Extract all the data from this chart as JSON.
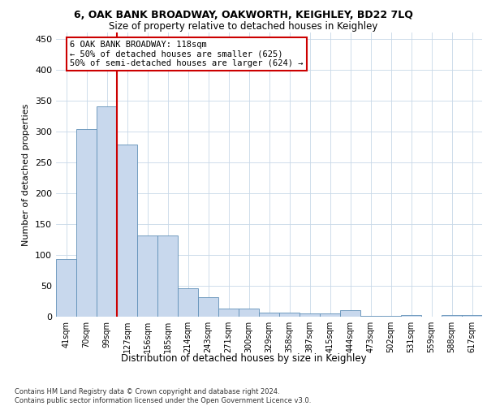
{
  "title": "6, OAK BANK BROADWAY, OAKWORTH, KEIGHLEY, BD22 7LQ",
  "subtitle": "Size of property relative to detached houses in Keighley",
  "xlabel": "Distribution of detached houses by size in Keighley",
  "ylabel": "Number of detached properties",
  "bar_labels": [
    "41sqm",
    "70sqm",
    "99sqm",
    "127sqm",
    "156sqm",
    "185sqm",
    "214sqm",
    "243sqm",
    "271sqm",
    "300sqm",
    "329sqm",
    "358sqm",
    "387sqm",
    "415sqm",
    "444sqm",
    "473sqm",
    "502sqm",
    "531sqm",
    "559sqm",
    "588sqm",
    "617sqm"
  ],
  "bar_values": [
    93,
    303,
    340,
    278,
    131,
    131,
    46,
    31,
    13,
    13,
    7,
    7,
    5,
    5,
    10,
    1,
    1,
    3,
    0,
    3,
    3
  ],
  "bar_color": "#c8d8ed",
  "bar_edge_color": "#6090b8",
  "vline_color": "#cc0000",
  "vline_x_idx": 2.5,
  "annotation_line1": "6 OAK BANK BROADWAY: 118sqm",
  "annotation_line2": "← 50% of detached houses are smaller (625)",
  "annotation_line3": "50% of semi-detached houses are larger (624) →",
  "annotation_box_color": "#ffffff",
  "annotation_box_edge": "#cc0000",
  "ylim": [
    0,
    460
  ],
  "yticks": [
    0,
    50,
    100,
    150,
    200,
    250,
    300,
    350,
    400,
    450
  ],
  "footer_line1": "Contains HM Land Registry data © Crown copyright and database right 2024.",
  "footer_line2": "Contains public sector information licensed under the Open Government Licence v3.0.",
  "bg_color": "#ffffff",
  "grid_color": "#c8d8e8"
}
